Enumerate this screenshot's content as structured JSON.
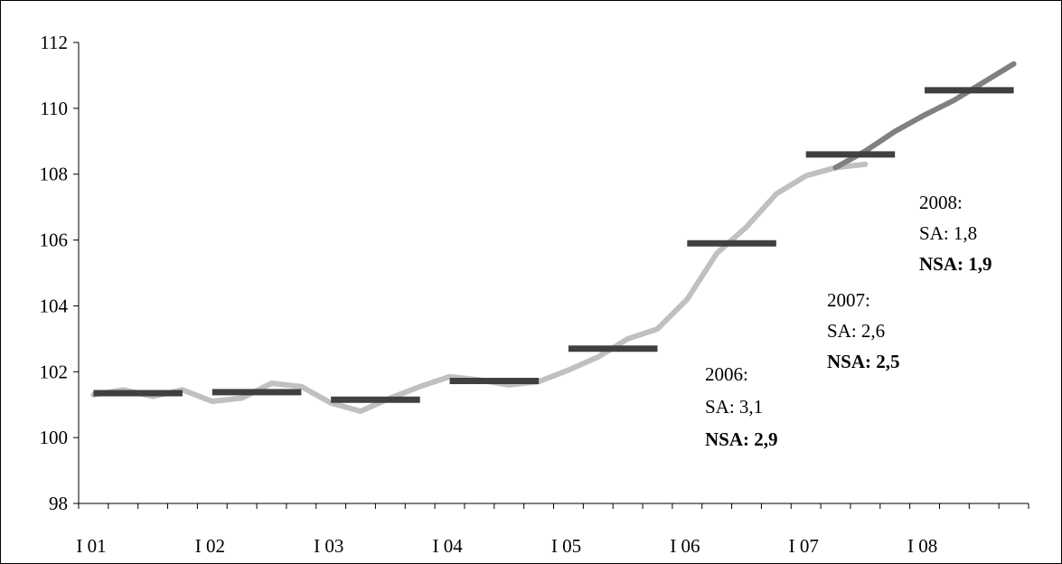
{
  "chart_data": {
    "type": "line",
    "title": "",
    "xlabel": "",
    "ylabel": "",
    "ylim": [
      98,
      112
    ],
    "yticks": [
      "98",
      "100",
      "102",
      "104",
      "106",
      "108",
      "110",
      "112"
    ],
    "xlabels": [
      "I 01",
      "I 02",
      "I 03",
      "I 04",
      "I 05",
      "I 06",
      "I 07",
      "I 08"
    ],
    "grid": false,
    "legend": "none",
    "series": [
      {
        "style": "quarterly-line",
        "color": "#c0c0c0",
        "x_quarters": [
          0,
          1,
          2,
          3,
          4,
          5,
          6,
          7,
          8,
          9,
          10,
          11,
          12,
          13,
          14,
          15,
          16,
          17,
          18,
          19,
          20,
          21,
          22,
          23,
          24,
          25,
          26
        ],
        "values": [
          101.3,
          101.45,
          101.25,
          101.45,
          101.1,
          101.2,
          101.65,
          101.55,
          101.05,
          100.8,
          101.2,
          101.55,
          101.85,
          101.75,
          101.6,
          101.7,
          102.05,
          102.45,
          103.0,
          103.3,
          104.2,
          105.6,
          106.4,
          107.4,
          107.95,
          108.2,
          108.3
        ]
      },
      {
        "style": "quarterly-line",
        "color": "#808080",
        "x_quarters": [
          25,
          26,
          27,
          28,
          29,
          30,
          31
        ],
        "values": [
          108.2,
          108.7,
          109.3,
          109.8,
          110.25,
          110.8,
          111.35
        ]
      },
      {
        "style": "annual-average",
        "color": "#404040",
        "segments": [
          {
            "year": "2001",
            "value": 101.35
          },
          {
            "year": "2002",
            "value": 101.38
          },
          {
            "year": "2003",
            "value": 101.15
          },
          {
            "year": "2004",
            "value": 101.72
          },
          {
            "year": "2005",
            "value": 102.7
          },
          {
            "year": "2006",
            "value": 105.9
          },
          {
            "year": "2007",
            "value": 108.6
          },
          {
            "year": "2008",
            "value": 110.55
          }
        ]
      }
    ],
    "annotations": [
      {
        "year": "2006:",
        "sa": "SA: 3,1",
        "nsa": "NSA: 2,9"
      },
      {
        "year": "2007:",
        "sa": "SA: 2,6",
        "nsa": "NSA: 2,5"
      },
      {
        "year": "2008:",
        "sa": "SA: 1,8",
        "nsa": "NSA: 1,9"
      }
    ]
  }
}
